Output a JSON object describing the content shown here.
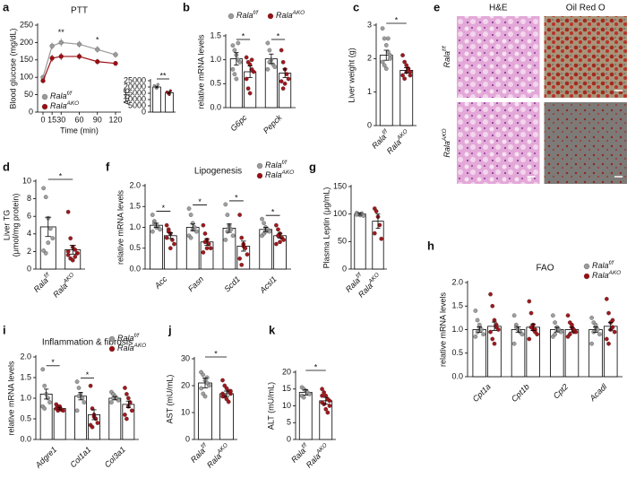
{
  "chart_data": [
    {
      "type": "line",
      "panel_label": "a",
      "title": "PTT",
      "ylabel": "Blood glucose (mg/dL)",
      "xlabel": "Time (min)",
      "x": [
        0,
        15,
        30,
        60,
        90,
        120
      ],
      "xlim": [
        0,
        120
      ],
      "xticks": [
        0,
        15,
        30,
        60,
        90,
        120
      ],
      "ylim": [
        0,
        250
      ],
      "yticks": [
        0,
        50,
        100,
        150,
        200,
        250
      ],
      "legend": "lower left",
      "significance": [
        null,
        null,
        "**",
        null,
        "*",
        null
      ],
      "series": [
        {
          "name": "Rala",
          "name_sup": "f/f",
          "color": "#9a9a9a",
          "values": [
            100,
            190,
            200,
            195,
            180,
            165
          ],
          "errors": [
            6,
            10,
            12,
            10,
            10,
            9
          ]
        },
        {
          "name": "Rala",
          "name_sup": "AKO",
          "color": "#9b0d12",
          "values": [
            90,
            155,
            160,
            160,
            145,
            140
          ],
          "errors": [
            5,
            10,
            10,
            9,
            8,
            7
          ]
        }
      ]
    },
    {
      "type": "bar",
      "ylabel": "AUC",
      "ylim": [
        0,
        25000
      ],
      "yticks": [
        0,
        5000,
        10000,
        15000,
        20000,
        25000
      ],
      "significance": "**",
      "series": [
        {
          "color": "#9a9a9a",
          "values": [
            20000
          ],
          "errors": [
            600
          ],
          "points": [
            [
              21000,
              20000,
              19000,
              22000
            ]
          ]
        },
        {
          "color": "#9b0d12",
          "values": [
            15500
          ],
          "errors": [
            700
          ],
          "points": [
            [
              16000,
              15000,
              14000,
              17000
            ]
          ]
        }
      ]
    },
    {
      "type": "bar",
      "panel_label": "b",
      "ylabel": "relative mRNA levels",
      "categories": [
        "G6pc",
        "Pepck"
      ],
      "ylim": [
        0,
        1.5
      ],
      "yticks": [
        {
          "value": 0,
          "label": "0.0"
        },
        0.5,
        {
          "value": 1,
          "label": "1.0"
        },
        1.5
      ],
      "legend": "top",
      "significance": [
        "*",
        "*"
      ],
      "series": [
        {
          "name": "Rala",
          "name_sup": "f/f",
          "color": "#9a9a9a",
          "values": [
            1.02,
            1.02
          ],
          "errors": [
            0.13,
            0.1
          ],
          "points": [
            [
              1.3,
              1.2,
              1.1,
              1.0,
              0.95,
              0.8,
              0.7,
              0.6,
              1.35
            ],
            [
              1.35,
              1.2,
              1.0,
              0.9,
              0.85,
              0.8,
              0.95
            ]
          ]
        },
        {
          "name": "Rala",
          "name_sup": "AKO",
          "color": "#9b0d12",
          "values": [
            0.75,
            0.72
          ],
          "errors": [
            0.12,
            0.09
          ],
          "points": [
            [
              1.05,
              0.95,
              0.9,
              0.8,
              0.75,
              0.6,
              0.4,
              0.3,
              1.0
            ],
            [
              1.2,
              0.95,
              0.8,
              0.7,
              0.6,
              0.55,
              0.4,
              0.5
            ]
          ]
        }
      ]
    },
    {
      "type": "bar",
      "panel_label": "c",
      "ylabel": "Liver weight (g)",
      "ylim": [
        0,
        3
      ],
      "yticks": [
        0,
        1,
        2,
        3
      ],
      "significance": "*",
      "series": [
        {
          "name": "Rala",
          "name_sup": "f/f",
          "color": "#9a9a9a",
          "values": [
            2.1
          ],
          "errors": [
            0.15
          ],
          "points": [
            [
              2.9,
              2.6,
              2.4,
              2.2,
              2.0,
              1.9,
              1.8,
              1.7,
              2.6,
              2.1
            ]
          ]
        },
        {
          "name": "Rala",
          "name_sup": "AKO",
          "color": "#9b0d12",
          "values": [
            1.65
          ],
          "errors": [
            0.08
          ],
          "points": [
            [
              2.1,
              1.9,
              1.8,
              1.7,
              1.6,
              1.5,
              1.4,
              1.6,
              1.7,
              1.5
            ]
          ]
        }
      ]
    },
    {
      "type": "image_grid",
      "panel_label": "e",
      "columns": [
        "H&E",
        "Oil Red O"
      ],
      "rows": [
        {
          "name": "Rala",
          "name_sup": "f/f"
        },
        {
          "name": "Rala",
          "name_sup": "AKO"
        }
      ]
    },
    {
      "type": "bar",
      "panel_label": "d",
      "ylabel_lines": [
        "Liver TG",
        "(μmol/mg protein)"
      ],
      "ylim": [
        0,
        10
      ],
      "yticks": [
        0,
        2,
        4,
        6,
        8,
        10
      ],
      "significance": "*",
      "series": [
        {
          "name": "Rala",
          "name_sup": "f/f",
          "color": "#9a9a9a",
          "values": [
            4.8
          ],
          "errors": [
            1.1
          ],
          "points": [
            [
              9.2,
              8.2,
              5.8,
              4.6,
              3.5,
              2.1,
              1.8,
              3.0
            ]
          ]
        },
        {
          "name": "Rala",
          "name_sup": "AKO",
          "color": "#9b0d12",
          "values": [
            2.2
          ],
          "errors": [
            0.5
          ],
          "points": [
            [
              6.5,
              3.5,
              2.5,
              2.2,
              1.8,
              1.6,
              1.2,
              1.0,
              1.4,
              1.8,
              2.0
            ]
          ]
        }
      ]
    },
    {
      "type": "bar",
      "panel_label": "f",
      "title": "Lipogenesis",
      "ylabel": "relative mRNA levels",
      "categories": [
        "Acc",
        "Fasn",
        "Scd1",
        "Acsl1"
      ],
      "ylim": [
        0,
        2
      ],
      "yticks": [
        {
          "value": 0,
          "label": "0.0"
        },
        0.5,
        {
          "value": 1,
          "label": "1.0"
        },
        1.5,
        {
          "value": 2,
          "label": "2.0"
        }
      ],
      "legend": "upper right",
      "significance": [
        "*",
        "*",
        "*",
        "*"
      ],
      "series": [
        {
          "name": "Rala",
          "name_sup": "f/f",
          "color": "#9a9a9a",
          "values": [
            1.05,
            1.0,
            0.98,
            0.95
          ],
          "errors": [
            0.05,
            0.08,
            0.1,
            0.05
          ],
          "points": [
            [
              1.3,
              1.15,
              1.05,
              1.0,
              0.95,
              0.9,
              1.1,
              1.0
            ],
            [
              1.45,
              1.3,
              1.1,
              1.0,
              0.9,
              0.8,
              0.75,
              0.95
            ],
            [
              1.55,
              1.3,
              1.05,
              0.95,
              0.8,
              0.7,
              0.9,
              1.0
            ],
            [
              1.2,
              1.1,
              1.0,
              0.95,
              0.9,
              0.8,
              0.85,
              0.9
            ]
          ]
        },
        {
          "name": "Rala",
          "name_sup": "AKO",
          "color": "#9b0d12",
          "values": [
            0.8,
            0.65,
            0.55,
            0.8
          ],
          "errors": [
            0.07,
            0.08,
            0.12,
            0.06
          ],
          "points": [
            [
              1.05,
              0.95,
              0.85,
              0.7,
              0.6,
              0.75,
              0.9,
              0.5
            ],
            [
              1.05,
              0.85,
              0.7,
              0.6,
              0.5,
              0.4,
              0.65,
              0.5
            ],
            [
              1.3,
              0.75,
              0.6,
              0.5,
              0.35,
              0.25,
              0.1,
              0.55
            ],
            [
              1.05,
              0.95,
              0.85,
              0.75,
              0.7,
              0.6,
              0.8,
              0.65
            ]
          ]
        }
      ]
    },
    {
      "type": "bar",
      "panel_label": "g",
      "ylabel": "Plasma Leptin (μg/mL)",
      "ylim": [
        0,
        150
      ],
      "yticks": [
        0,
        50,
        100,
        150
      ],
      "series": [
        {
          "name": "Rala",
          "name_sup": "f/f",
          "color": "#9a9a9a",
          "values": [
            100
          ],
          "errors": [
            2
          ],
          "points": [
            [
              102,
              100,
              98,
              101,
              97,
              99
            ]
          ]
        },
        {
          "name": "Rala",
          "name_sup": "AKO",
          "color": "#9b0d12",
          "values": [
            87
          ],
          "errors": [
            13
          ],
          "points": [
            [
              110,
              105,
              95,
              80,
              55,
              65
            ]
          ]
        }
      ]
    },
    {
      "type": "bar",
      "panel_label": "h",
      "title": "FAO",
      "ylabel": "relative mRNA levels",
      "categories": [
        "Cpt1a",
        "Cpt1b",
        "Cpt2",
        "Acadl"
      ],
      "ylim": [
        0,
        2
      ],
      "yticks": [
        {
          "value": 0,
          "label": "0.0"
        },
        0.5,
        {
          "value": 1,
          "label": "1.0"
        },
        1.5,
        {
          "value": 2,
          "label": "2.0"
        }
      ],
      "legend": "upper right",
      "series": [
        {
          "name": "Rala",
          "name_sup": "f/f",
          "color": "#9a9a9a",
          "values": [
            1.0,
            1.0,
            1.0,
            1.0
          ],
          "errors": [
            0.06,
            0.06,
            0.05,
            0.06
          ],
          "points": [
            [
              1.4,
              1.2,
              1.05,
              1.0,
              0.9,
              0.85,
              0.95,
              1.1
            ],
            [
              1.3,
              1.1,
              1.0,
              0.95,
              0.9,
              0.7,
              1.05,
              1.0
            ],
            [
              1.3,
              1.15,
              1.05,
              1.0,
              0.95,
              0.85,
              0.9,
              1.0
            ],
            [
              1.25,
              1.15,
              1.05,
              1.0,
              0.9,
              0.7,
              0.95,
              1.1
            ]
          ]
        },
        {
          "name": "Rala",
          "name_sup": "AKO",
          "color": "#9b0d12",
          "values": [
            1.07,
            1.05,
            1.0,
            1.07
          ],
          "errors": [
            0.09,
            0.07,
            0.05,
            0.08
          ],
          "points": [
            [
              1.75,
              1.5,
              1.2,
              1.05,
              1.0,
              0.95,
              0.8,
              0.7,
              1.1
            ],
            [
              1.6,
              1.35,
              1.1,
              1.0,
              0.9,
              0.8,
              1.05,
              1.0,
              0.95
            ],
            [
              1.3,
              1.15,
              1.05,
              1.0,
              0.95,
              0.85,
              0.9,
              1.1,
              0.95
            ],
            [
              1.65,
              1.35,
              1.15,
              1.05,
              0.95,
              0.8,
              0.7,
              1.0,
              1.2
            ]
          ]
        }
      ]
    },
    {
      "type": "bar",
      "panel_label": "i",
      "title": "Inflammation & fibrosis",
      "ylabel": "relative mRNA levels",
      "categories": [
        "Adgre1",
        "Col1a1",
        "Col3a1"
      ],
      "ylim": [
        0,
        2
      ],
      "yticks": [
        {
          "value": 0,
          "label": "0.0"
        },
        0.5,
        {
          "value": 1,
          "label": "1.0"
        },
        1.5,
        {
          "value": 2,
          "label": "2.0"
        }
      ],
      "legend": "upper right",
      "significance": [
        "*",
        "*",
        null
      ],
      "series": [
        {
          "name": "Rala",
          "name_sup": "f/f",
          "color": "#9a9a9a",
          "values": [
            1.1,
            1.05,
            1.0
          ],
          "errors": [
            0.12,
            0.09,
            0.04
          ],
          "points": [
            [
              1.7,
              1.3,
              1.1,
              1.0,
              0.9,
              0.8,
              0.75
            ],
            [
              1.4,
              1.25,
              1.1,
              1.0,
              0.9,
              0.7,
              1.05
            ],
            [
              1.15,
              1.1,
              1.05,
              1.0,
              0.95,
              0.9,
              1.0
            ]
          ]
        },
        {
          "name": "Rala",
          "name_sup": "AKO",
          "color": "#9b0d12",
          "values": [
            0.75,
            0.6,
            0.85
          ],
          "errors": [
            0.03,
            0.12,
            0.08
          ],
          "points": [
            [
              0.85,
              0.8,
              0.75,
              0.72,
              0.7,
              0.75,
              0.7,
              0.8
            ],
            [
              1.3,
              0.75,
              0.6,
              0.5,
              0.4,
              0.35,
              0.3,
              0.55
            ],
            [
              1.25,
              1.1,
              1.0,
              0.9,
              0.7,
              0.6,
              0.5,
              0.8
            ]
          ]
        }
      ]
    },
    {
      "type": "bar",
      "panel_label": "j",
      "ylabel": "AST (mU/mL)",
      "ylim": [
        0,
        30
      ],
      "yticks": [
        0,
        10,
        20,
        30
      ],
      "significance": "*",
      "series": [
        {
          "name": "Rala",
          "name_sup": "f/f",
          "color": "#9a9a9a",
          "values": [
            21
          ],
          "errors": [
            1.8
          ],
          "points": [
            [
              25,
              24,
              22,
              21,
              20,
              19,
              17,
              16,
              23
            ]
          ]
        },
        {
          "name": "Rala",
          "name_sup": "AKO",
          "color": "#9b0d12",
          "values": [
            17
          ],
          "errors": [
            1
          ],
          "points": [
            [
              22,
              20,
              19,
              18,
              17,
              17,
              16,
              15,
              14,
              18,
              16
            ]
          ]
        }
      ]
    },
    {
      "type": "bar",
      "panel_label": "k",
      "ylabel": "ALT (mU/mL)",
      "ylim": [
        0,
        20
      ],
      "yticks": [
        0,
        5,
        10,
        15,
        20
      ],
      "significance": "*",
      "series": [
        {
          "name": "Rala",
          "name_sup": "f/f",
          "color": "#9a9a9a",
          "values": [
            14
          ],
          "errors": [
            0.8
          ],
          "points": [
            [
              15.5,
              15,
              14.5,
              14,
              13.5,
              13,
              12.5
            ]
          ]
        },
        {
          "name": "Rala",
          "name_sup": "AKO",
          "color": "#9b0d12",
          "values": [
            11.5
          ],
          "errors": [
            1
          ],
          "points": [
            [
              15,
              14,
              13,
              12,
              11.5,
              11,
              10.5,
              9,
              8,
              10,
              13
            ]
          ]
        }
      ]
    }
  ]
}
